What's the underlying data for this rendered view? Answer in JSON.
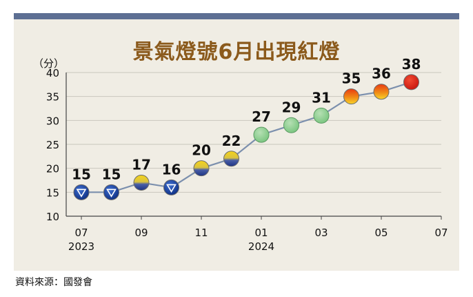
{
  "source_note": "資料來源：國發會",
  "colors": {
    "line": "#7b8fad",
    "frame": "#5d6f93",
    "panel": "#f0ede4",
    "title": "#8b5a1c"
  },
  "chart_data": {
    "type": "line",
    "title": "景氣燈號6月出現紅燈",
    "ylabel": "（分）",
    "ylim": [
      10,
      40
    ],
    "yticks": [
      10,
      15,
      20,
      25,
      30,
      35,
      40
    ],
    "xticks": [
      {
        "label": "07",
        "sub": "2023"
      },
      {
        "label": "09",
        "sub": ""
      },
      {
        "label": "11",
        "sub": ""
      },
      {
        "label": "01",
        "sub": "2024"
      },
      {
        "label": "03",
        "sub": ""
      },
      {
        "label": "05",
        "sub": ""
      },
      {
        "label": "07",
        "sub": ""
      }
    ],
    "grid": true,
    "points": [
      {
        "month": "2023-07",
        "value": 15,
        "signal": "blue"
      },
      {
        "month": "2023-08",
        "value": 15,
        "signal": "blue"
      },
      {
        "month": "2023-09",
        "value": 17,
        "signal": "yellow-blue"
      },
      {
        "month": "2023-10",
        "value": 16,
        "signal": "blue"
      },
      {
        "month": "2023-11",
        "value": 20,
        "signal": "yellow-blue"
      },
      {
        "month": "2023-12",
        "value": 22,
        "signal": "yellow-blue"
      },
      {
        "month": "2024-01",
        "value": 27,
        "signal": "green"
      },
      {
        "month": "2024-02",
        "value": 29,
        "signal": "green"
      },
      {
        "month": "2024-03",
        "value": 31,
        "signal": "green"
      },
      {
        "month": "2024-04",
        "value": 35,
        "signal": "yellow-red"
      },
      {
        "month": "2024-05",
        "value": 36,
        "signal": "yellow-red"
      },
      {
        "month": "2024-06",
        "value": 38,
        "signal": "red"
      }
    ]
  }
}
